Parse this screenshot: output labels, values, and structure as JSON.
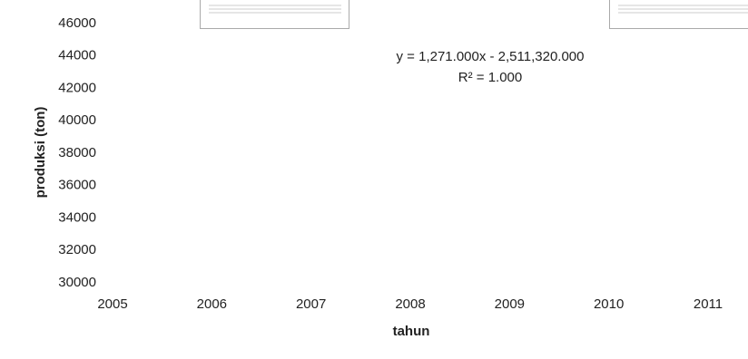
{
  "chart_data": {
    "type": "scatter",
    "x_label": "tahun",
    "y_label": "produksi (ton)",
    "annotations": [
      "y = 1,271.000x - 2,511,320.000",
      "R² = 1.000"
    ],
    "xlim": [
      2005,
      2011
    ],
    "xticks": [
      2005,
      2006,
      2007,
      2008,
      2009,
      2010,
      2011
    ],
    "ylim": [
      30000,
      46000
    ],
    "yticks": [
      30000,
      32000,
      34000,
      36000,
      38000,
      40000,
      42000,
      44000,
      46000
    ],
    "grid": false
  }
}
